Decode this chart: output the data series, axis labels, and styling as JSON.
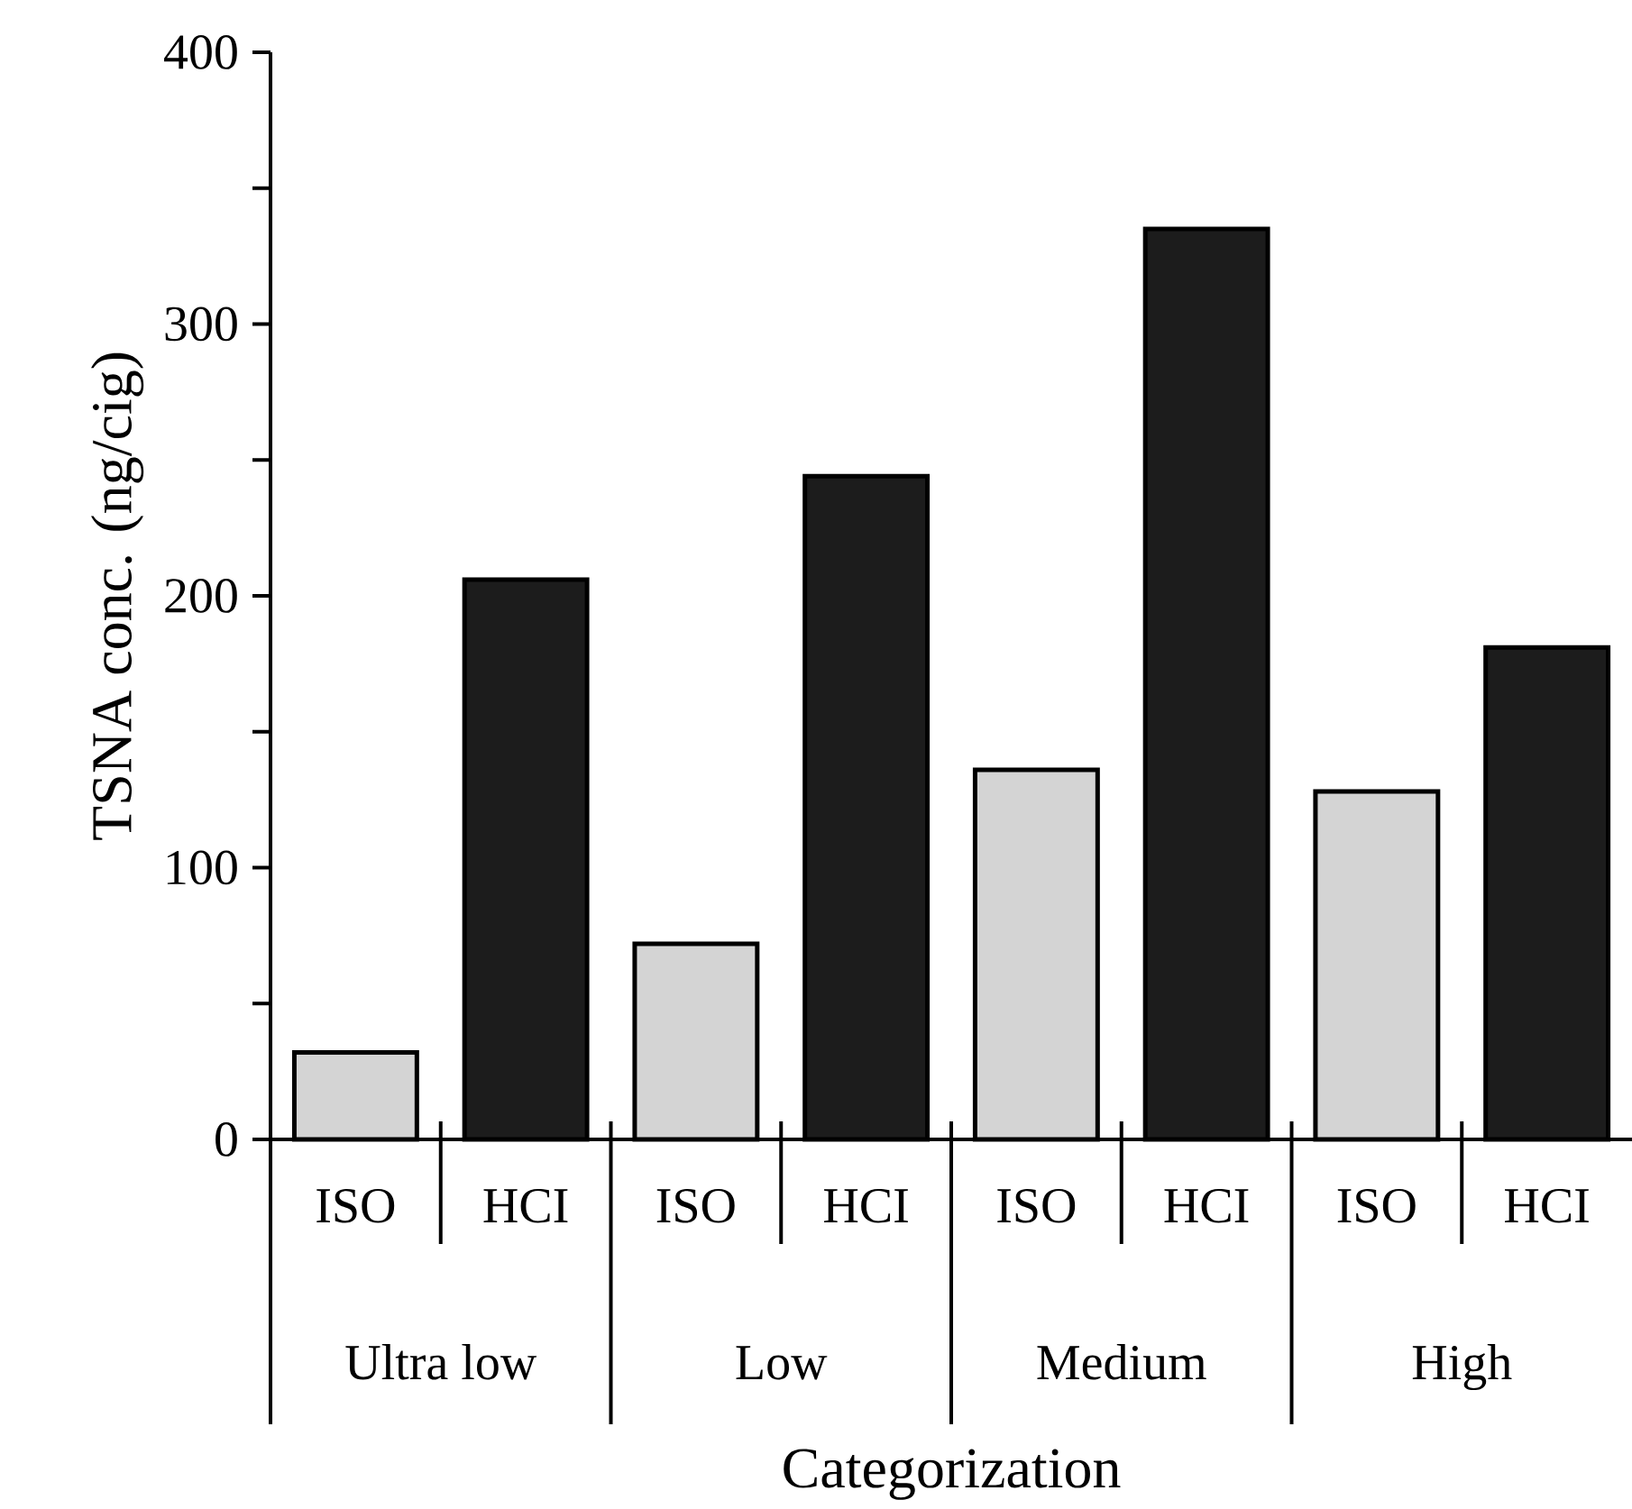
{
  "chart_data": {
    "type": "bar",
    "xlabel": "Categorization",
    "ylabel": "TSNA conc. (ng/cig)",
    "categories": [
      "Ultra low",
      "Low",
      "Medium",
      "High"
    ],
    "series": [
      {
        "name": "ISO",
        "color": "#d4d4d4",
        "values": [
          32,
          72,
          136,
          128
        ]
      },
      {
        "name": "HCI",
        "color": "#1c1c1c",
        "values": [
          206,
          244,
          335,
          181
        ]
      }
    ],
    "ylim": [
      0,
      400
    ],
    "yticks": [
      0,
      {
        "value": 50,
        "label": null
      },
      100,
      {
        "value": 150,
        "label": null
      },
      200,
      {
        "value": 250,
        "label": null
      },
      300,
      {
        "value": 350,
        "label": null
      },
      400
    ]
  }
}
